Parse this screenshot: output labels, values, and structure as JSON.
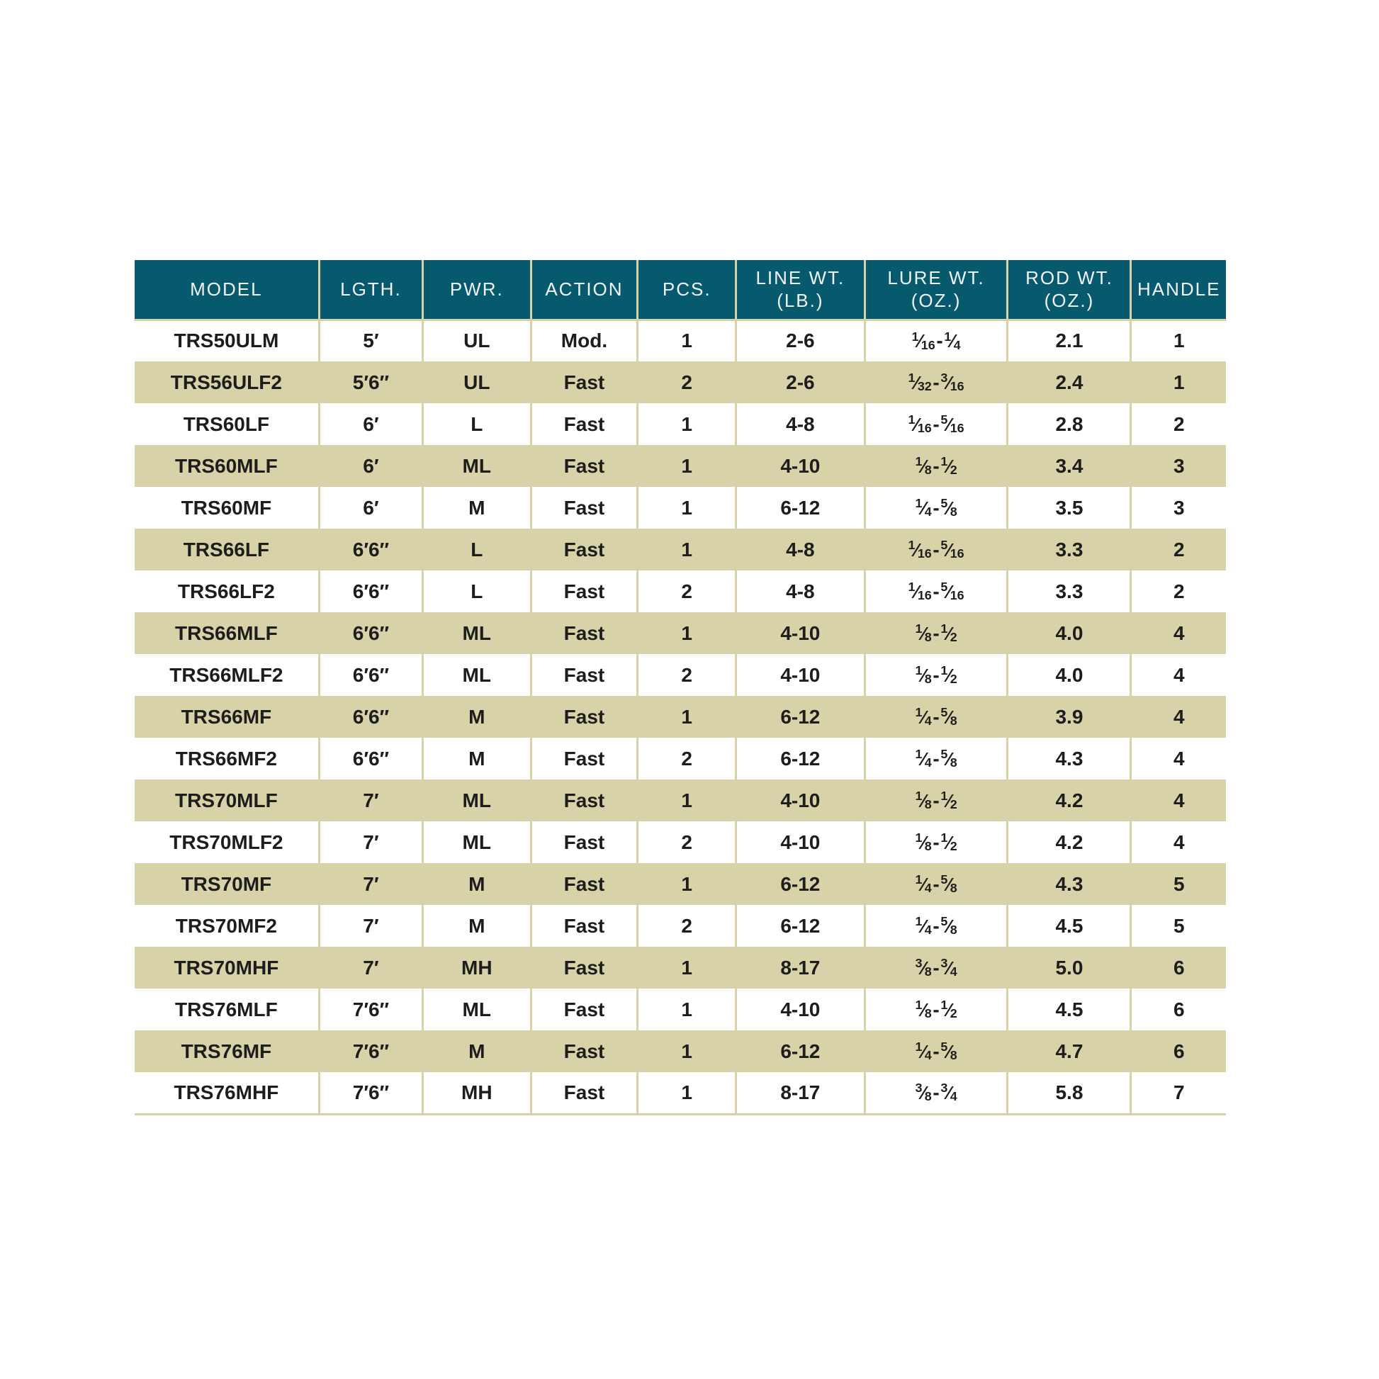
{
  "colors": {
    "header_bg": "#07596e",
    "header_text": "#f2f5f4",
    "row_alt_bg": "#d8d2a8",
    "grid_line": "#d8d2a8",
    "body_text": "#1d1d1b",
    "page_bg": "#ffffff"
  },
  "table": {
    "columns": [
      {
        "key": "model",
        "label": "MODEL",
        "sublabel": "",
        "width_pct": 16.9
      },
      {
        "key": "length",
        "label": "LGTH.",
        "sublabel": "",
        "width_pct": 9.5
      },
      {
        "key": "power",
        "label": "PWR.",
        "sublabel": "",
        "width_pct": 9.9
      },
      {
        "key": "action",
        "label": "ACTION",
        "sublabel": "",
        "width_pct": 9.8
      },
      {
        "key": "pieces",
        "label": "PCS.",
        "sublabel": "",
        "width_pct": 9.0
      },
      {
        "key": "line_wt",
        "label": "LINE WT.",
        "sublabel": "(LB.)",
        "width_pct": 11.8
      },
      {
        "key": "lure_wt",
        "label": "LURE WT.",
        "sublabel": "(OZ.)",
        "width_pct": 13.1
      },
      {
        "key": "rod_wt",
        "label": "ROD WT.",
        "sublabel": "(OZ.)",
        "width_pct": 11.3
      },
      {
        "key": "handle",
        "label": "HANDLE",
        "sublabel": "",
        "width_pct": 8.7
      }
    ],
    "rows": [
      {
        "model": "TRS50ULM",
        "length": "5′",
        "power": "UL",
        "action": "Mod.",
        "pieces": "1",
        "line_wt": "2-6",
        "lure_wt": "1/16-1/4",
        "rod_wt": "2.1",
        "handle": "1"
      },
      {
        "model": "TRS56ULF2",
        "length": "5′6″",
        "power": "UL",
        "action": "Fast",
        "pieces": "2",
        "line_wt": "2-6",
        "lure_wt": "1/32-3/16",
        "rod_wt": "2.4",
        "handle": "1"
      },
      {
        "model": "TRS60LF",
        "length": "6′",
        "power": "L",
        "action": "Fast",
        "pieces": "1",
        "line_wt": "4-8",
        "lure_wt": "1/16-5/16",
        "rod_wt": "2.8",
        "handle": "2"
      },
      {
        "model": "TRS60MLF",
        "length": "6′",
        "power": "ML",
        "action": "Fast",
        "pieces": "1",
        "line_wt": "4-10",
        "lure_wt": "1/8-1/2",
        "rod_wt": "3.4",
        "handle": "3"
      },
      {
        "model": "TRS60MF",
        "length": "6′",
        "power": "M",
        "action": "Fast",
        "pieces": "1",
        "line_wt": "6-12",
        "lure_wt": "1/4-5/8",
        "rod_wt": "3.5",
        "handle": "3"
      },
      {
        "model": "TRS66LF",
        "length": "6′6″",
        "power": "L",
        "action": "Fast",
        "pieces": "1",
        "line_wt": "4-8",
        "lure_wt": "1/16-5/16",
        "rod_wt": "3.3",
        "handle": "2"
      },
      {
        "model": "TRS66LF2",
        "length": "6′6″",
        "power": "L",
        "action": "Fast",
        "pieces": "2",
        "line_wt": "4-8",
        "lure_wt": "1/16-5/16",
        "rod_wt": "3.3",
        "handle": "2"
      },
      {
        "model": "TRS66MLF",
        "length": "6′6″",
        "power": "ML",
        "action": "Fast",
        "pieces": "1",
        "line_wt": "4-10",
        "lure_wt": "1/8-1/2",
        "rod_wt": "4.0",
        "handle": "4"
      },
      {
        "model": "TRS66MLF2",
        "length": "6′6″",
        "power": "ML",
        "action": "Fast",
        "pieces": "2",
        "line_wt": "4-10",
        "lure_wt": "1/8-1/2",
        "rod_wt": "4.0",
        "handle": "4"
      },
      {
        "model": "TRS66MF",
        "length": "6′6″",
        "power": "M",
        "action": "Fast",
        "pieces": "1",
        "line_wt": "6-12",
        "lure_wt": "1/4-5/8",
        "rod_wt": "3.9",
        "handle": "4"
      },
      {
        "model": "TRS66MF2",
        "length": "6′6″",
        "power": "M",
        "action": "Fast",
        "pieces": "2",
        "line_wt": "6-12",
        "lure_wt": "1/4-5/8",
        "rod_wt": "4.3",
        "handle": "4"
      },
      {
        "model": "TRS70MLF",
        "length": "7′",
        "power": "ML",
        "action": "Fast",
        "pieces": "1",
        "line_wt": "4-10",
        "lure_wt": "1/8-1/2",
        "rod_wt": "4.2",
        "handle": "4"
      },
      {
        "model": "TRS70MLF2",
        "length": "7′",
        "power": "ML",
        "action": "Fast",
        "pieces": "2",
        "line_wt": "4-10",
        "lure_wt": "1/8-1/2",
        "rod_wt": "4.2",
        "handle": "4"
      },
      {
        "model": "TRS70MF",
        "length": "7′",
        "power": "M",
        "action": "Fast",
        "pieces": "1",
        "line_wt": "6-12",
        "lure_wt": "1/4-5/8",
        "rod_wt": "4.3",
        "handle": "5"
      },
      {
        "model": "TRS70MF2",
        "length": "7′",
        "power": "M",
        "action": "Fast",
        "pieces": "2",
        "line_wt": "6-12",
        "lure_wt": "1/4-5/8",
        "rod_wt": "4.5",
        "handle": "5"
      },
      {
        "model": "TRS70MHF",
        "length": "7′",
        "power": "MH",
        "action": "Fast",
        "pieces": "1",
        "line_wt": "8-17",
        "lure_wt": "3/8-3/4",
        "rod_wt": "5.0",
        "handle": "6"
      },
      {
        "model": "TRS76MLF",
        "length": "7′6″",
        "power": "ML",
        "action": "Fast",
        "pieces": "1",
        "line_wt": "4-10",
        "lure_wt": "1/8-1/2",
        "rod_wt": "4.5",
        "handle": "6"
      },
      {
        "model": "TRS76MF",
        "length": "7′6″",
        "power": "M",
        "action": "Fast",
        "pieces": "1",
        "line_wt": "6-12",
        "lure_wt": "1/4-5/8",
        "rod_wt": "4.7",
        "handle": "6"
      },
      {
        "model": "TRS76MHF",
        "length": "7′6″",
        "power": "MH",
        "action": "Fast",
        "pieces": "1",
        "line_wt": "8-17",
        "lure_wt": "3/8-3/4",
        "rod_wt": "5.8",
        "handle": "7"
      }
    ]
  }
}
